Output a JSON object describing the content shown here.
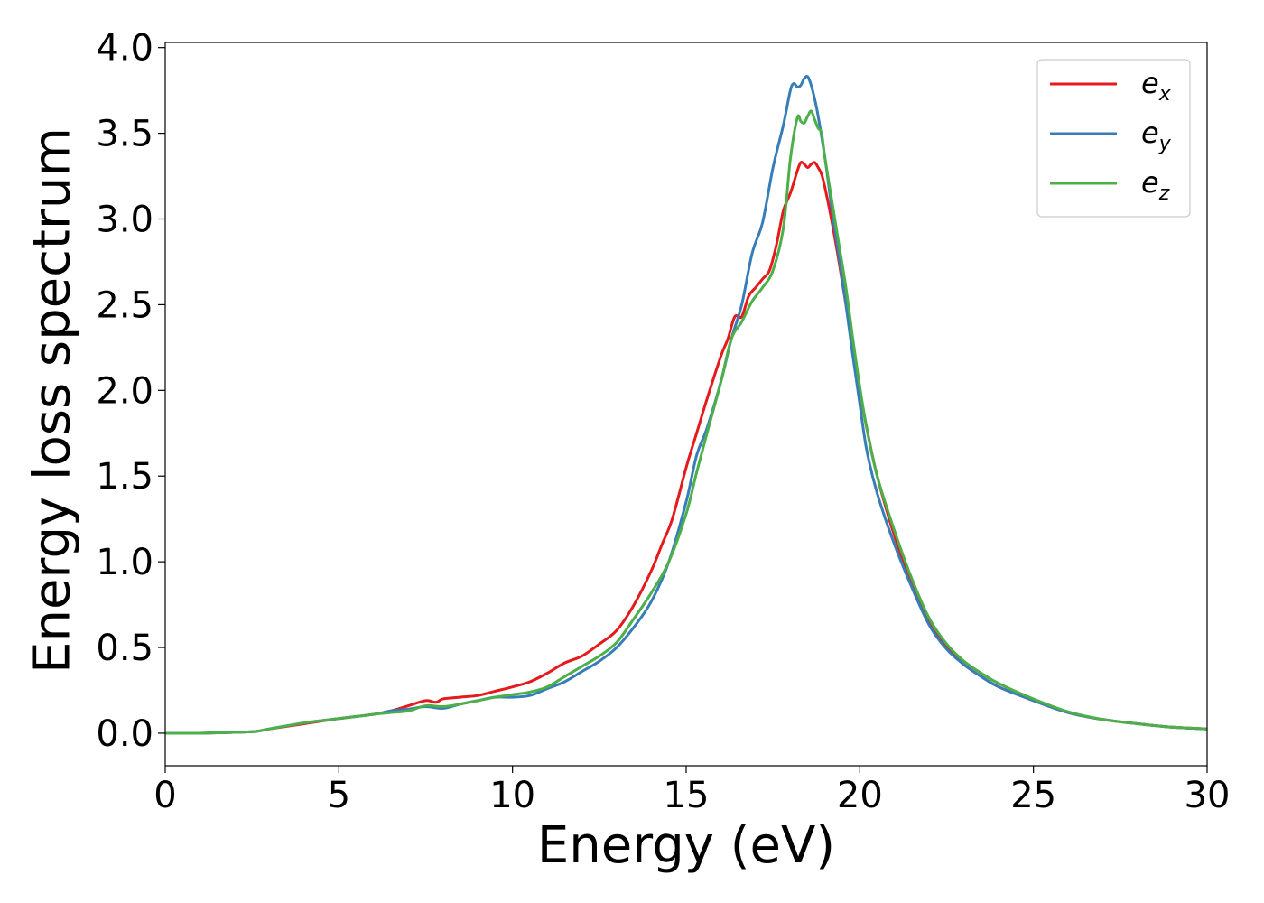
{
  "chart_data": {
    "type": "line",
    "title": "",
    "xlabel": "Energy (eV)",
    "ylabel": "Energy loss spectrum",
    "xlim": [
      0,
      30
    ],
    "ylim": [
      -0.19,
      4.03
    ],
    "xticks": [
      0,
      5,
      10,
      15,
      20,
      25,
      30
    ],
    "xtick_labels": [
      "0",
      "5",
      "10",
      "15",
      "20",
      "25",
      "30"
    ],
    "yticks": [
      0.0,
      0.5,
      1.0,
      1.5,
      2.0,
      2.5,
      3.0,
      3.5,
      4.0
    ],
    "ytick_labels": [
      "0.0",
      "0.5",
      "1.0",
      "1.5",
      "2.0",
      "2.5",
      "3.0",
      "3.5",
      "4.0"
    ],
    "grid": false,
    "legend_position": "top-right",
    "series": [
      {
        "name": "e",
        "subscript": "x",
        "color": "#e41a1c",
        "x": [
          0,
          1,
          2,
          2.6,
          3,
          4,
          5,
          6,
          6.5,
          7,
          7.5,
          7.8,
          8,
          8.5,
          9,
          9.5,
          10,
          10.5,
          11,
          11.5,
          12,
          12.5,
          13,
          13.5,
          14,
          14.3,
          14.6,
          15,
          15.3,
          15.6,
          16,
          16.2,
          16.4,
          16.6,
          16.8,
          17,
          17.2,
          17.4,
          17.6,
          17.8,
          18,
          18.2,
          18.3,
          18.4,
          18.5,
          18.6,
          18.7,
          18.8,
          18.9,
          19,
          19.2,
          19.4,
          19.6,
          19.8,
          20,
          20.2,
          20.5,
          21,
          21.5,
          22,
          22.5,
          23,
          23.5,
          24,
          25,
          26,
          27,
          28,
          29,
          30
        ],
        "y": [
          0.0,
          0.0,
          0.005,
          0.01,
          0.025,
          0.055,
          0.085,
          0.11,
          0.13,
          0.16,
          0.19,
          0.18,
          0.2,
          0.21,
          0.22,
          0.245,
          0.27,
          0.3,
          0.35,
          0.41,
          0.45,
          0.52,
          0.6,
          0.75,
          0.95,
          1.1,
          1.25,
          1.55,
          1.75,
          1.95,
          2.2,
          2.3,
          2.43,
          2.43,
          2.55,
          2.6,
          2.65,
          2.7,
          2.85,
          3.05,
          3.15,
          3.28,
          3.33,
          3.32,
          3.3,
          3.32,
          3.33,
          3.3,
          3.26,
          3.18,
          2.98,
          2.75,
          2.5,
          2.25,
          2.0,
          1.78,
          1.5,
          1.15,
          0.87,
          0.64,
          0.5,
          0.4,
          0.33,
          0.27,
          0.19,
          0.12,
          0.08,
          0.055,
          0.035,
          0.025
        ]
      },
      {
        "name": "e",
        "subscript": "y",
        "color": "#377eb8",
        "x": [
          0,
          1,
          2,
          2.6,
          3,
          4,
          5,
          6,
          6.5,
          7,
          7.5,
          8,
          8.5,
          9,
          9.5,
          10,
          10.5,
          11,
          11.5,
          12,
          12.5,
          13,
          13.5,
          14,
          14.5,
          15,
          15.3,
          15.6,
          16,
          16.3,
          16.6,
          16.9,
          17.2,
          17.5,
          17.8,
          18,
          18.1,
          18.2,
          18.3,
          18.4,
          18.5,
          18.6,
          18.7,
          18.8,
          19,
          19.2,
          19.4,
          19.6,
          19.8,
          20,
          20.2,
          20.5,
          21,
          21.5,
          22,
          22.5,
          23,
          23.5,
          24,
          25,
          26,
          27,
          28,
          29,
          30
        ],
        "y": [
          0.0,
          0.0,
          0.005,
          0.01,
          0.025,
          0.06,
          0.085,
          0.11,
          0.13,
          0.14,
          0.155,
          0.145,
          0.17,
          0.19,
          0.21,
          0.21,
          0.22,
          0.26,
          0.3,
          0.36,
          0.42,
          0.5,
          0.62,
          0.77,
          1.0,
          1.35,
          1.62,
          1.78,
          2.05,
          2.3,
          2.5,
          2.8,
          2.98,
          3.3,
          3.55,
          3.75,
          3.79,
          3.77,
          3.78,
          3.82,
          3.83,
          3.78,
          3.7,
          3.6,
          3.35,
          3.05,
          2.78,
          2.5,
          2.2,
          1.92,
          1.65,
          1.4,
          1.1,
          0.85,
          0.63,
          0.49,
          0.4,
          0.33,
          0.27,
          0.19,
          0.12,
          0.08,
          0.055,
          0.035,
          0.025
        ]
      },
      {
        "name": "e",
        "subscript": "z",
        "color": "#4daf4a",
        "x": [
          0,
          1,
          2,
          2.6,
          3,
          4,
          5,
          6,
          6.5,
          7,
          7.5,
          8,
          8.5,
          9,
          9.5,
          10,
          10.5,
          11,
          11.5,
          12,
          12.5,
          13,
          13.5,
          14,
          14.5,
          15,
          15.3,
          15.6,
          16,
          16.3,
          16.6,
          16.9,
          17.2,
          17.5,
          17.8,
          18,
          18.2,
          18.3,
          18.4,
          18.5,
          18.6,
          18.7,
          18.8,
          18.9,
          19,
          19.2,
          19.4,
          19.6,
          19.8,
          20,
          20.2,
          20.5,
          21,
          21.5,
          22,
          22.5,
          23,
          23.5,
          24,
          25,
          26,
          27,
          28,
          29,
          30
        ],
        "y": [
          0.0,
          0.0,
          0.005,
          0.01,
          0.025,
          0.06,
          0.085,
          0.11,
          0.12,
          0.13,
          0.16,
          0.155,
          0.17,
          0.19,
          0.21,
          0.225,
          0.24,
          0.27,
          0.33,
          0.39,
          0.45,
          0.53,
          0.67,
          0.82,
          1.0,
          1.28,
          1.52,
          1.75,
          2.05,
          2.3,
          2.4,
          2.52,
          2.6,
          2.7,
          2.95,
          3.35,
          3.59,
          3.57,
          3.56,
          3.6,
          3.63,
          3.58,
          3.53,
          3.5,
          3.35,
          3.1,
          2.85,
          2.6,
          2.3,
          2.02,
          1.78,
          1.5,
          1.18,
          0.9,
          0.67,
          0.52,
          0.42,
          0.35,
          0.29,
          0.2,
          0.125,
          0.08,
          0.055,
          0.035,
          0.025
        ]
      }
    ]
  }
}
